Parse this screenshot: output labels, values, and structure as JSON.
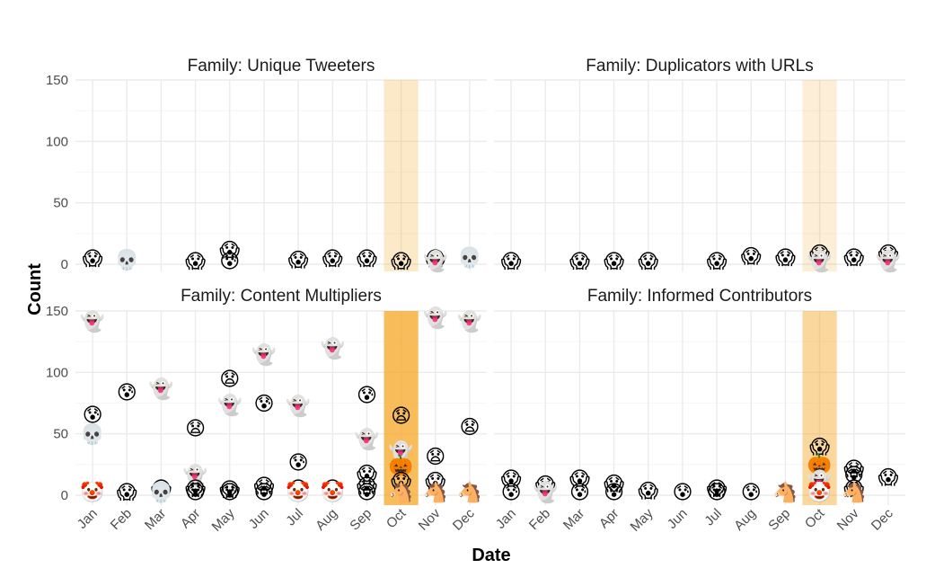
{
  "chart_data": {
    "type": "scatter",
    "xlabel": "Date",
    "ylabel": "Count",
    "ylim": [
      0,
      150
    ],
    "yticks": [
      "0",
      "50",
      "100",
      "150"
    ],
    "months": [
      "Jan",
      "Feb",
      "Mar",
      "Apr",
      "May",
      "Jun",
      "Jul",
      "Aug",
      "Sep",
      "Oct",
      "Nov",
      "Dec"
    ],
    "highlight_month": "Oct",
    "highlight_color": "#f5a623",
    "panels": [
      {
        "title": "Family: Unique Tweeters",
        "highlight_opacity": 0.25,
        "points": [
          {
            "m": 1,
            "y": 5,
            "e": "scream"
          },
          {
            "m": 2,
            "y": 4,
            "e": "skull"
          },
          {
            "m": 4,
            "y": 3,
            "e": "scream"
          },
          {
            "m": 5,
            "y": 12,
            "e": "scream"
          },
          {
            "m": 5,
            "y": 3,
            "e": "anxious"
          },
          {
            "m": 7,
            "y": 4,
            "e": "scream"
          },
          {
            "m": 8,
            "y": 5,
            "e": "scream"
          },
          {
            "m": 9,
            "y": 5,
            "e": "scream"
          },
          {
            "m": 10,
            "y": 3,
            "e": "scream"
          },
          {
            "m": 11,
            "y": 5,
            "e": "scream"
          },
          {
            "m": 11,
            "y": 3,
            "e": "ghost"
          },
          {
            "m": 12,
            "y": 6,
            "e": "skull"
          }
        ]
      },
      {
        "title": "Family: Duplicators with URLs",
        "highlight_opacity": 0.18,
        "points": [
          {
            "m": 1,
            "y": 3,
            "e": "scream"
          },
          {
            "m": 3,
            "y": 3,
            "e": "scream"
          },
          {
            "m": 4,
            "y": 3,
            "e": "scream"
          },
          {
            "m": 5,
            "y": 3,
            "e": "scream"
          },
          {
            "m": 7,
            "y": 3,
            "e": "scream"
          },
          {
            "m": 8,
            "y": 7,
            "e": "scream"
          },
          {
            "m": 9,
            "y": 6,
            "e": "scream"
          },
          {
            "m": 10,
            "y": 9,
            "e": "scream"
          },
          {
            "m": 10,
            "y": 3,
            "e": "ghost"
          },
          {
            "m": 11,
            "y": 6,
            "e": "scream"
          },
          {
            "m": 12,
            "y": 9,
            "e": "scream"
          },
          {
            "m": 12,
            "y": 3,
            "e": "ghost"
          }
        ]
      },
      {
        "title": "Family: Content Multipliers",
        "highlight_opacity": 0.75,
        "points": [
          {
            "m": 1,
            "y": 142,
            "e": "ghost"
          },
          {
            "m": 1,
            "y": 66,
            "e": "anxious"
          },
          {
            "m": 1,
            "y": 50,
            "e": "skull"
          },
          {
            "m": 1,
            "y": 3,
            "e": "clown"
          },
          {
            "m": 2,
            "y": 84,
            "e": "anxious"
          },
          {
            "m": 2,
            "y": 3,
            "e": "scream"
          },
          {
            "m": 3,
            "y": 87,
            "e": "ghost"
          },
          {
            "m": 3,
            "y": 6,
            "e": "scream"
          },
          {
            "m": 3,
            "y": 3,
            "e": "skull"
          },
          {
            "m": 4,
            "y": 55,
            "e": "frown"
          },
          {
            "m": 4,
            "y": 17,
            "e": "ghost"
          },
          {
            "m": 4,
            "y": 6,
            "e": "scream"
          },
          {
            "m": 4,
            "y": 3,
            "e": "anxious"
          },
          {
            "m": 5,
            "y": 95,
            "e": "frown"
          },
          {
            "m": 5,
            "y": 74,
            "e": "ghost"
          },
          {
            "m": 5,
            "y": 5,
            "e": "scream"
          },
          {
            "m": 5,
            "y": 3,
            "e": "anxious"
          },
          {
            "m": 6,
            "y": 115,
            "e": "ghost"
          },
          {
            "m": 6,
            "y": 75,
            "e": "anxious"
          },
          {
            "m": 6,
            "y": 8,
            "e": "scream"
          },
          {
            "m": 6,
            "y": 3,
            "e": "anxious"
          },
          {
            "m": 7,
            "y": 73,
            "e": "ghost"
          },
          {
            "m": 7,
            "y": 27,
            "e": "anxious"
          },
          {
            "m": 7,
            "y": 6,
            "e": "scream"
          },
          {
            "m": 7,
            "y": 3,
            "e": "clown"
          },
          {
            "m": 8,
            "y": 120,
            "e": "ghost"
          },
          {
            "m": 8,
            "y": 6,
            "e": "scream"
          },
          {
            "m": 8,
            "y": 3,
            "e": "clown"
          },
          {
            "m": 9,
            "y": 82,
            "e": "anxious"
          },
          {
            "m": 9,
            "y": 46,
            "e": "ghost"
          },
          {
            "m": 9,
            "y": 18,
            "e": "scream"
          },
          {
            "m": 9,
            "y": 8,
            "e": "scream"
          },
          {
            "m": 9,
            "y": 3,
            "e": "anxious"
          },
          {
            "m": 10,
            "y": 65,
            "e": "frown"
          },
          {
            "m": 10,
            "y": 36,
            "e": "ghost"
          },
          {
            "m": 10,
            "y": 25,
            "e": "pumpkin"
          },
          {
            "m": 10,
            "y": 12,
            "e": "scream"
          },
          {
            "m": 10,
            "y": 3,
            "e": "horse"
          },
          {
            "m": 11,
            "y": 145,
            "e": "ghost"
          },
          {
            "m": 11,
            "y": 32,
            "e": "frown"
          },
          {
            "m": 11,
            "y": 12,
            "e": "scream"
          },
          {
            "m": 11,
            "y": 3,
            "e": "horse"
          },
          {
            "m": 12,
            "y": 142,
            "e": "ghost"
          },
          {
            "m": 12,
            "y": 56,
            "e": "frown"
          },
          {
            "m": 12,
            "y": 3,
            "e": "horse"
          }
        ]
      },
      {
        "title": "Family: Informed Contributors",
        "highlight_opacity": 0.45,
        "points": [
          {
            "m": 1,
            "y": 14,
            "e": "scream"
          },
          {
            "m": 1,
            "y": 3,
            "e": "anxious"
          },
          {
            "m": 2,
            "y": 9,
            "e": "scream"
          },
          {
            "m": 2,
            "y": 3,
            "e": "ghost"
          },
          {
            "m": 3,
            "y": 14,
            "e": "scream"
          },
          {
            "m": 3,
            "y": 3,
            "e": "anxious"
          },
          {
            "m": 4,
            "y": 10,
            "e": "scream"
          },
          {
            "m": 4,
            "y": 3,
            "e": "anxious"
          },
          {
            "m": 5,
            "y": 4,
            "e": "scream"
          },
          {
            "m": 6,
            "y": 3,
            "e": "anxious"
          },
          {
            "m": 7,
            "y": 6,
            "e": "scream"
          },
          {
            "m": 7,
            "y": 3,
            "e": "anxious"
          },
          {
            "m": 8,
            "y": 3,
            "e": "anxious"
          },
          {
            "m": 9,
            "y": 3,
            "e": "horse"
          },
          {
            "m": 10,
            "y": 40,
            "e": "scream"
          },
          {
            "m": 10,
            "y": 26,
            "e": "pumpkin"
          },
          {
            "m": 10,
            "y": 12,
            "e": "ghost"
          },
          {
            "m": 10,
            "y": 3,
            "e": "clown"
          },
          {
            "m": 11,
            "y": 22,
            "e": "scream"
          },
          {
            "m": 11,
            "y": 17,
            "e": "anxious"
          },
          {
            "m": 11,
            "y": 6,
            "e": "scream"
          },
          {
            "m": 11,
            "y": 3,
            "e": "horse"
          },
          {
            "m": 12,
            "y": 15,
            "e": "scream"
          }
        ]
      }
    ]
  },
  "emoji_glyphs": {
    "scream": "😱",
    "anxious": "😰",
    "frown": "😧",
    "ghost": "👻",
    "skull": "💀",
    "clown": "🤡",
    "pumpkin": "🎃",
    "horse": "🐴"
  }
}
